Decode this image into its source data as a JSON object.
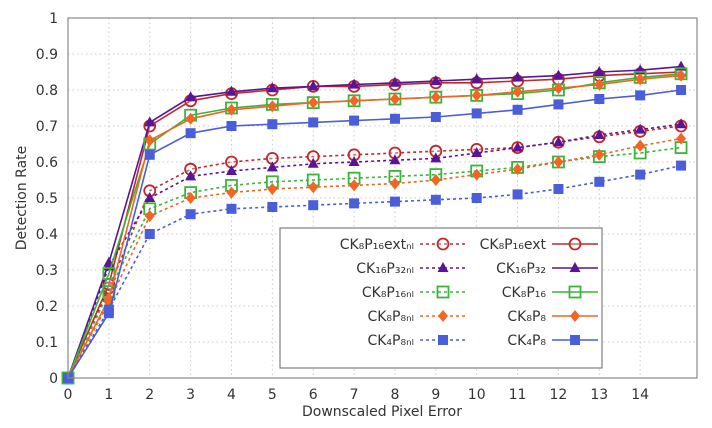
{
  "chart_data": {
    "type": "line",
    "title": "",
    "xlabel": "Downscaled Pixel Error",
    "ylabel": "Detection Rate",
    "xlim": [
      0,
      15.4
    ],
    "ylim": [
      0,
      1
    ],
    "grid": true,
    "legend_position": "bottom-center",
    "x": [
      0,
      1,
      2,
      3,
      4,
      5,
      6,
      7,
      8,
      9,
      10,
      11,
      12,
      13,
      14,
      15
    ],
    "x_tick_labels": [
      "0",
      "1",
      "2",
      "3",
      "4",
      "5",
      "6",
      "7",
      "8",
      "9",
      "10",
      "11",
      "12",
      "13",
      "14"
    ],
    "y_tick_labels": [
      "0",
      "0.1",
      "0.2",
      "0.3",
      "0.4",
      "0.5",
      "0.6",
      "0.7",
      "0.8",
      "0.9",
      "1"
    ],
    "series": [
      {
        "name": "CK₈P₁₆extₙₗ",
        "color": "#c0282d",
        "marker": "open-circle",
        "dashed": true,
        "values": [
          0,
          0.25,
          0.52,
          0.58,
          0.6,
          0.61,
          0.615,
          0.62,
          0.625,
          0.63,
          0.635,
          0.64,
          0.655,
          0.67,
          0.685,
          0.7
        ]
      },
      {
        "name": "CK₈P₁₆ext",
        "color": "#c0282d",
        "marker": "open-circle",
        "dashed": false,
        "values": [
          0,
          0.26,
          0.7,
          0.77,
          0.79,
          0.8,
          0.81,
          0.81,
          0.815,
          0.82,
          0.82,
          0.825,
          0.83,
          0.84,
          0.845,
          0.85
        ]
      },
      {
        "name": "CK₁₆P₃₂ₙₗ",
        "color": "#5a1496",
        "marker": "triangle",
        "dashed": true,
        "values": [
          0,
          0.31,
          0.5,
          0.56,
          0.575,
          0.585,
          0.595,
          0.6,
          0.605,
          0.61,
          0.625,
          0.64,
          0.655,
          0.675,
          0.69,
          0.705
        ]
      },
      {
        "name": "CK₁₆P₃₂",
        "color": "#5a1496",
        "marker": "triangle",
        "dashed": false,
        "values": [
          0,
          0.32,
          0.71,
          0.78,
          0.795,
          0.805,
          0.81,
          0.815,
          0.82,
          0.825,
          0.83,
          0.835,
          0.84,
          0.85,
          0.855,
          0.865
        ]
      },
      {
        "name": "CK₈P₁₆ₙₗ",
        "color": "#3cb43c",
        "marker": "open-square",
        "dashed": true,
        "values": [
          0,
          0.24,
          0.47,
          0.515,
          0.535,
          0.545,
          0.55,
          0.555,
          0.56,
          0.565,
          0.575,
          0.585,
          0.6,
          0.615,
          0.625,
          0.64
        ]
      },
      {
        "name": "CK₈P₁₆",
        "color": "#3cb43c",
        "marker": "open-square",
        "dashed": false,
        "values": [
          0,
          0.29,
          0.65,
          0.73,
          0.75,
          0.76,
          0.765,
          0.77,
          0.775,
          0.78,
          0.785,
          0.79,
          0.8,
          0.82,
          0.835,
          0.845
        ]
      },
      {
        "name": "CK₈P₈ₙₗ",
        "color": "#f26522",
        "marker": "diamond",
        "dashed": true,
        "values": [
          0,
          0.21,
          0.45,
          0.5,
          0.515,
          0.525,
          0.53,
          0.535,
          0.54,
          0.55,
          0.565,
          0.58,
          0.6,
          0.62,
          0.645,
          0.665
        ]
      },
      {
        "name": "CK₈P₈",
        "color": "#f26522",
        "marker": "diamond",
        "dashed": false,
        "values": [
          0,
          0.22,
          0.66,
          0.72,
          0.745,
          0.755,
          0.765,
          0.77,
          0.775,
          0.78,
          0.785,
          0.795,
          0.805,
          0.815,
          0.83,
          0.84
        ]
      },
      {
        "name": "CK₄P₈ₙₗ",
        "color": "#4a5ed8",
        "marker": "filled-square",
        "dashed": true,
        "values": [
          0,
          0.19,
          0.4,
          0.455,
          0.47,
          0.475,
          0.48,
          0.485,
          0.49,
          0.495,
          0.5,
          0.51,
          0.525,
          0.545,
          0.565,
          0.59
        ]
      },
      {
        "name": "CK₄P₈",
        "color": "#4a5ed8",
        "marker": "filled-square",
        "dashed": false,
        "values": [
          0,
          0.18,
          0.62,
          0.68,
          0.7,
          0.705,
          0.71,
          0.715,
          0.72,
          0.725,
          0.735,
          0.745,
          0.76,
          0.775,
          0.785,
          0.8
        ]
      }
    ]
  }
}
